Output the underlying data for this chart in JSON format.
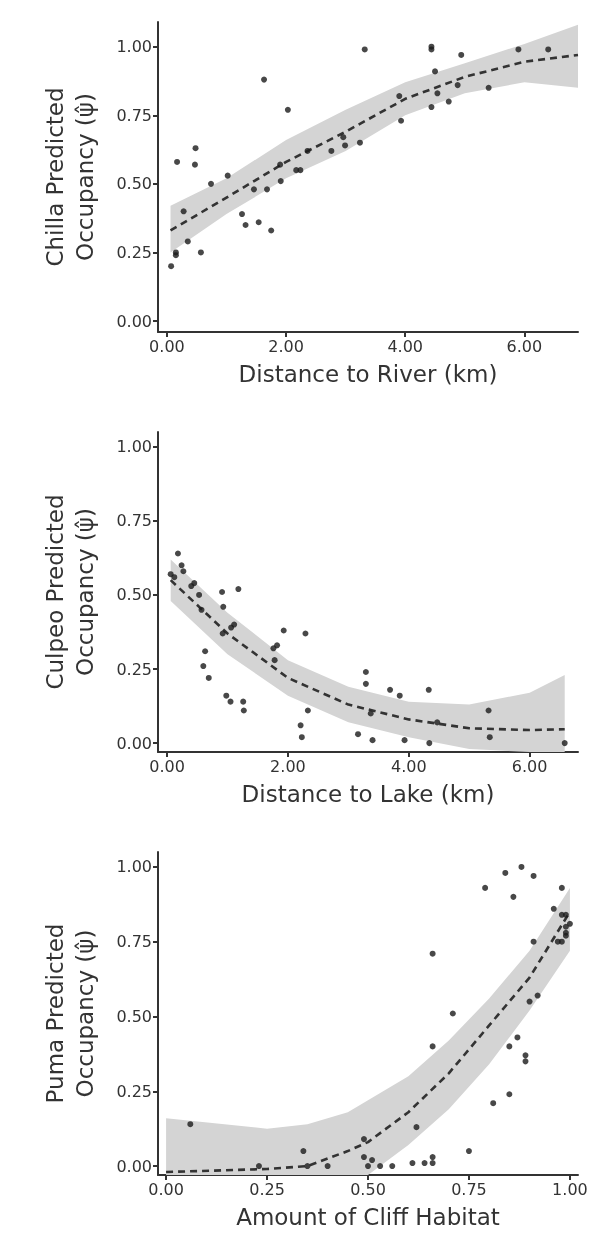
{
  "chart_data": [
    {
      "type": "scatter",
      "xlabel": "Distance to River (km)",
      "ylabel": "Chilla Predicted Occupancy (ψ̂)",
      "xlim": [
        -0.15,
        6.9
      ],
      "xticks": [
        {
          "value": 0,
          "label": "0.00"
        },
        {
          "value": 2,
          "label": "2.00"
        },
        {
          "value": 4,
          "label": "4.00"
        },
        {
          "value": 6,
          "label": "6.00"
        }
      ],
      "ylim": [
        -0.04,
        1.09
      ],
      "yticks": [
        {
          "value": 0,
          "label": "0.00"
        },
        {
          "value": 0.25,
          "label": "0.25"
        },
        {
          "value": 0.5,
          "label": "0.50"
        },
        {
          "value": 0.75,
          "label": "0.75"
        },
        {
          "value": 1,
          "label": "1.00"
        }
      ],
      "marker": "circle",
      "series": [
        {
          "type": "scatter",
          "color": "#1a1a1a",
          "x": [
            0.07,
            0.15,
            0.15,
            0.17,
            0.28,
            0.35,
            0.48,
            0.47,
            0.57,
            0.74,
            1.02,
            1.26,
            1.32,
            1.46,
            1.54,
            1.63,
            1.68,
            1.75,
            1.9,
            1.91,
            2.03,
            2.17,
            2.24,
            2.36,
            2.76,
            2.96,
            2.99,
            3.24,
            3.32,
            3.9,
            3.93,
            4.44,
            4.44,
            4.44,
            4.5,
            4.54,
            4.73,
            4.88,
            4.94,
            5.4,
            5.9,
            6.4
          ],
          "values": [
            0.2,
            0.25,
            0.24,
            0.58,
            0.4,
            0.29,
            0.63,
            0.57,
            0.25,
            0.5,
            0.53,
            0.39,
            0.35,
            0.48,
            0.36,
            0.88,
            0.48,
            0.33,
            0.57,
            0.51,
            0.77,
            0.55,
            0.55,
            0.62,
            0.62,
            0.67,
            0.64,
            0.65,
            0.99,
            0.82,
            0.73,
            1.0,
            0.99,
            0.78,
            0.91,
            0.83,
            0.8,
            0.86,
            0.97,
            0.85,
            0.99,
            0.99
          ]
        },
        {
          "type": "line",
          "marker": "none",
          "line_style": "dashed",
          "color": "#333333",
          "x": [
            0.06,
            1,
            2,
            3,
            4,
            5,
            6,
            6.9
          ],
          "values": [
            0.33,
            0.45,
            0.58,
            0.69,
            0.81,
            0.89,
            0.945,
            0.97
          ],
          "lower": [
            0.25,
            0.39,
            0.52,
            0.62,
            0.75,
            0.83,
            0.87,
            0.85
          ],
          "upper": [
            0.42,
            0.52,
            0.66,
            0.77,
            0.87,
            0.94,
            1.01,
            1.08
          ]
        }
      ]
    },
    {
      "type": "scatter",
      "xlabel": "Distance to Lake (km)",
      "ylabel": "Culpeo Predicted Occupancy (ψ̂)",
      "xlim": [
        -0.15,
        6.8
      ],
      "xticks": [
        {
          "value": 0,
          "label": "0.00"
        },
        {
          "value": 2,
          "label": "2.00"
        },
        {
          "value": 4,
          "label": "4.00"
        },
        {
          "value": 6,
          "label": "6.00"
        }
      ],
      "ylim": [
        -0.03,
        1.05
      ],
      "yticks": [
        {
          "value": 0,
          "label": "0.00"
        },
        {
          "value": 0.25,
          "label": "0.25"
        },
        {
          "value": 0.5,
          "label": "0.50"
        },
        {
          "value": 0.75,
          "label": "0.75"
        },
        {
          "value": 1,
          "label": "1.00"
        }
      ],
      "marker": "circle",
      "series": [
        {
          "type": "scatter",
          "color": "#1a1a1a",
          "x": [
            0.06,
            0.12,
            0.18,
            0.24,
            0.27,
            0.4,
            0.45,
            0.53,
            0.57,
            0.63,
            0.6,
            0.69,
            0.91,
            0.93,
            0.92,
            0.98,
            1.05,
            1.06,
            1.11,
            1.18,
            1.26,
            1.27,
            1.76,
            1.82,
            1.78,
            1.93,
            2.21,
            2.23,
            2.29,
            2.33,
            3.16,
            3.29,
            3.29,
            3.37,
            3.4,
            3.69,
            3.85,
            3.93,
            4.33,
            4.34,
            4.47,
            5.32,
            5.34,
            6.58
          ],
          "values": [
            0.57,
            0.56,
            0.64,
            0.6,
            0.58,
            0.53,
            0.54,
            0.5,
            0.45,
            0.31,
            0.26,
            0.22,
            0.51,
            0.46,
            0.37,
            0.16,
            0.14,
            0.39,
            0.4,
            0.52,
            0.14,
            0.11,
            0.32,
            0.33,
            0.28,
            0.38,
            0.06,
            0.02,
            0.37,
            0.11,
            0.03,
            0.24,
            0.2,
            0.1,
            0.01,
            0.18,
            0.16,
            0.01,
            0.18,
            0.0,
            0.07,
            0.11,
            0.02,
            0.0
          ]
        },
        {
          "type": "line",
          "marker": "none",
          "line_style": "dashed",
          "color": "#333333",
          "x": [
            0.06,
            1,
            2,
            3,
            4,
            5,
            6,
            6.58
          ],
          "values": [
            0.55,
            0.37,
            0.22,
            0.13,
            0.08,
            0.05,
            0.044,
            0.047
          ],
          "lower": [
            0.48,
            0.3,
            0.16,
            0.07,
            0.02,
            -0.02,
            -0.03,
            -0.03
          ],
          "upper": [
            0.62,
            0.44,
            0.28,
            0.19,
            0.14,
            0.13,
            0.17,
            0.23
          ]
        }
      ]
    },
    {
      "type": "scatter",
      "xlabel": "Amount of Cliff Habitat",
      "ylabel": "Puma Predicted Occupancy (ψ̂)",
      "xlim": [
        -0.02,
        1.02
      ],
      "xticks": [
        {
          "value": 0,
          "label": "0.00"
        },
        {
          "value": 0.25,
          "label": "0.25"
        },
        {
          "value": 0.5,
          "label": "0.50"
        },
        {
          "value": 0.75,
          "label": "0.75"
        },
        {
          "value": 1,
          "label": "1.00"
        }
      ],
      "ylim": [
        -0.03,
        1.05
      ],
      "yticks": [
        {
          "value": 0,
          "label": "0.00"
        },
        {
          "value": 0.25,
          "label": "0.25"
        },
        {
          "value": 0.5,
          "label": "0.50"
        },
        {
          "value": 0.75,
          "label": "0.75"
        },
        {
          "value": 1,
          "label": "1.00"
        }
      ],
      "marker": "circle",
      "series": [
        {
          "type": "scatter",
          "color": "#1a1a1a",
          "x": [
            0.06,
            0.23,
            0.34,
            0.35,
            0.4,
            0.49,
            0.49,
            0.5,
            0.51,
            0.53,
            0.56,
            0.61,
            0.62,
            0.64,
            0.66,
            0.66,
            0.66,
            0.66,
            0.71,
            0.75,
            0.79,
            0.81,
            0.84,
            0.85,
            0.85,
            0.86,
            0.87,
            0.88,
            0.89,
            0.89,
            0.9,
            0.91,
            0.91,
            0.92,
            0.96,
            0.98,
            0.98,
            0.97,
            0.98,
            0.99,
            0.99,
            0.99,
            1.0,
            0.99
          ],
          "values": [
            0.14,
            0.0,
            0.05,
            0.0,
            0.0,
            0.09,
            0.03,
            0.0,
            0.02,
            0.0,
            0.0,
            0.01,
            0.13,
            0.01,
            0.01,
            0.03,
            0.4,
            0.71,
            0.51,
            0.05,
            0.93,
            0.21,
            0.98,
            0.24,
            0.4,
            0.9,
            0.43,
            1.0,
            0.37,
            0.35,
            0.55,
            0.75,
            0.97,
            0.57,
            0.86,
            0.84,
            0.93,
            0.75,
            0.75,
            0.78,
            0.77,
            0.8,
            0.81,
            0.84
          ]
        },
        {
          "type": "line",
          "marker": "none",
          "line_style": "dashed",
          "color": "#333333",
          "x": [
            0,
            0.25,
            0.35,
            0.45,
            0.5,
            0.6,
            0.7,
            0.8,
            0.9,
            1.0
          ],
          "values": [
            -0.02,
            -0.01,
            0.0,
            0.05,
            0.08,
            0.18,
            0.31,
            0.47,
            0.63,
            0.85
          ],
          "lower": [
            -0.03,
            -0.03,
            -0.03,
            -0.03,
            -0.03,
            0.07,
            0.19,
            0.34,
            0.52,
            0.72
          ],
          "upper": [
            0.16,
            0.125,
            0.14,
            0.18,
            0.22,
            0.3,
            0.42,
            0.56,
            0.72,
            0.93
          ]
        }
      ]
    }
  ]
}
